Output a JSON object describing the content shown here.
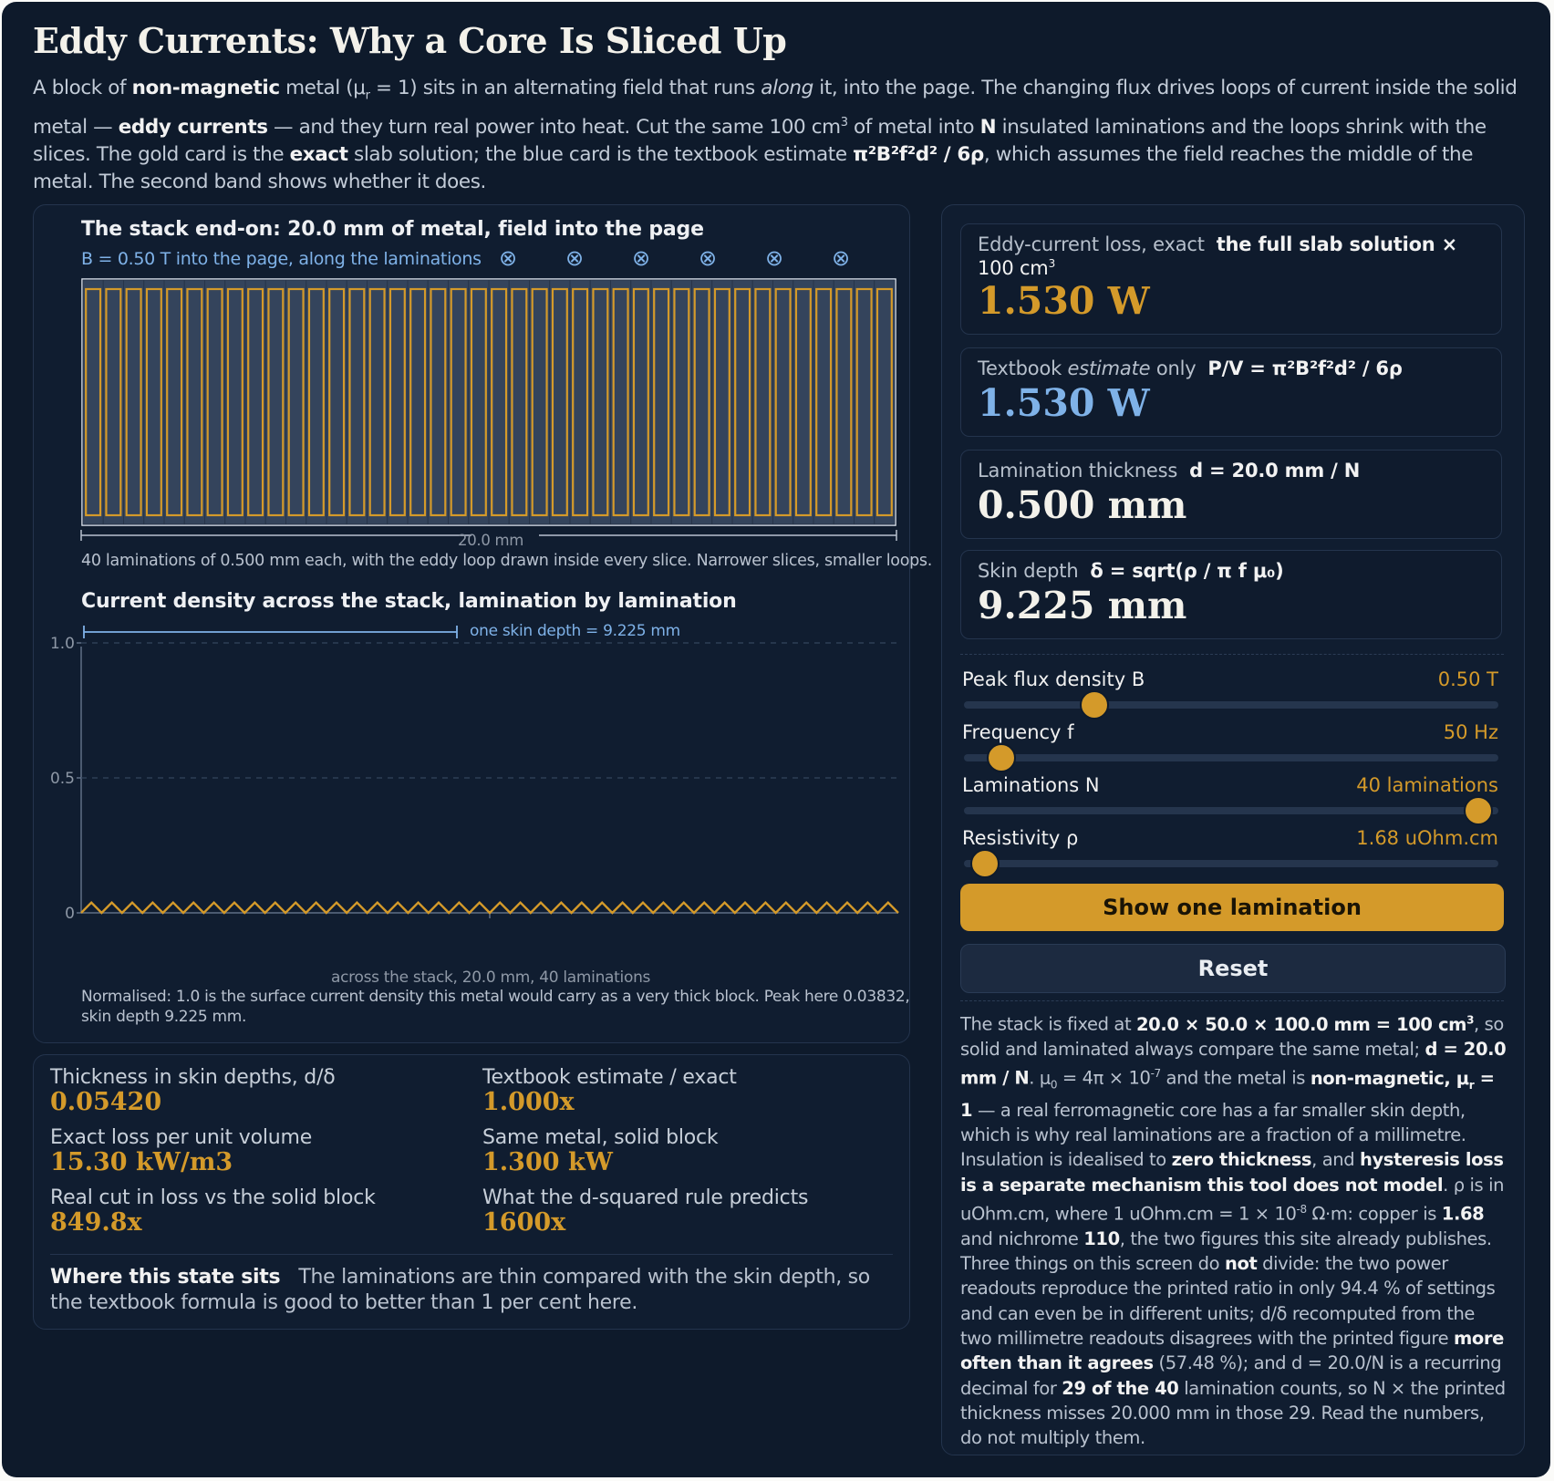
{
  "title": "Eddy Currents: Why a Core Is Sliced Up",
  "intro": {
    "t1": "A block of ",
    "b1": "non-magnetic",
    "t2": " metal (μ",
    "sub1": "r",
    "t3": " = 1) sits in an alternating field that runs ",
    "i1": "along",
    "t4": " it, into the page. The changing flux drives loops of current inside the solid metal — ",
    "b2": "eddy currents",
    "t5": " — and they turn real power into heat. Cut the same 100 cm",
    "sup1": "3",
    "t6": " of metal into ",
    "b3": "N",
    "t7": " insulated laminations and the loops shrink with the slices. The gold card is the ",
    "b4": "exact",
    "t8": " slab solution; the blue card is the textbook estimate ",
    "b5": "π²B²f²d² / 6ρ",
    "t9": ", which assumes the field reaches the middle of the metal. The second band shows whether it does."
  },
  "stack": {
    "heading": "The stack end-on: 20.0 mm of metal, field into the page",
    "field_label": "B = 0.50 T into the page, along the laminations",
    "field_symbol": "⊗",
    "field_symbol_count": 6,
    "lamination_count": 40,
    "dimension_label": "20.0 mm",
    "caption": "40 laminations of 0.500 mm each, with the eddy loop drawn inside every slice. Narrower slices, smaller loops."
  },
  "density": {
    "heading": "Current density across the stack, lamination by lamination",
    "skin_label": "one skin depth = 9.225 mm",
    "xlabel": "across the stack, 20.0 mm, 40 laminations",
    "caption_line1": "Normalised: 1.0 is the surface current density this metal would carry as a very thick block. Peak here 0.03832,",
    "caption_line2": "skin depth 9.225 mm."
  },
  "chart_data": {
    "type": "line",
    "title": "Current density across the stack, lamination by lamination",
    "xlabel": "across the stack, 20.0 mm, 40 laminations",
    "ylabel": "",
    "yticks": [
      "1.0",
      "0.5",
      "0"
    ],
    "ylim": [
      0,
      1.1
    ],
    "xlim": [
      0,
      20.0
    ],
    "grid": true,
    "skin_depth_mm": 9.225,
    "laminations": 40,
    "peak": 0.03832,
    "series": [
      {
        "profile": "zigzag",
        "values_per_lamination": [
          0,
          0.03832,
          0
        ]
      }
    ],
    "color": "#d49a2a"
  },
  "cards": {
    "exact": {
      "label": "Eddy-current loss, exact",
      "label_bold": "the full slab solution ×",
      "label_line2": "100 cm",
      "label_sup": "3",
      "value": "1.530 W",
      "color": "#d49a2a"
    },
    "estimate": {
      "label_a": "Textbook ",
      "label_i": "estimate",
      "label_b": " only",
      "formula": "P/V = π²B²f²d² / 6ρ",
      "value": "1.530 W",
      "color": "#7fb2e8"
    },
    "thickness": {
      "label": "Lamination thickness",
      "formula": "d = 20.0 mm / N",
      "value": "0.500 mm",
      "color": "#f3f1ea"
    },
    "skin": {
      "label": "Skin depth",
      "formula": "δ = sqrt(ρ / π f μ₀)",
      "value": "9.225 mm",
      "color": "#f3f1ea"
    }
  },
  "sliders": [
    {
      "name": "Peak flux density B",
      "value": "0.50 T",
      "fraction": 0.245
    },
    {
      "name": "Frequency f",
      "value": "50 Hz",
      "fraction": 0.07
    },
    {
      "name": "Laminations N",
      "value": "40 laminations",
      "fraction": 0.965
    },
    {
      "name": "Resistivity ρ",
      "value": "1.68 uOhm.cm",
      "fraction": 0.04
    }
  ],
  "buttons": {
    "show": "Show one lamination",
    "reset": "Reset"
  },
  "stats": [
    {
      "label": "Thickness in skin depths, d/δ",
      "value": "0.05420"
    },
    {
      "label": "Textbook estimate / exact",
      "value": "1.000x"
    },
    {
      "label": "Exact loss per unit volume",
      "value": "15.30 kW/m3"
    },
    {
      "label": "Same metal, solid block",
      "value": "1.300 kW"
    },
    {
      "label": "Real cut in loss vs the solid block",
      "value": "849.8x"
    },
    {
      "label": "What the d-squared rule predicts",
      "value": "1600x"
    }
  ],
  "state": {
    "label": "Where this state sits",
    "text": "The laminations are thin compared with the skin depth, so the textbook formula is good to better than 1 per cent here."
  },
  "note": {
    "a": "The stack is fixed at ",
    "b": "20.0 × 50.0 × 100.0 mm = 100 cm",
    "b_sup": "3",
    "c": ", so solid and laminated always compare the same metal; ",
    "d": "d = 20.0 mm / N",
    "e": ". μ",
    "e_sub": "0",
    "f": " = 4π × 10",
    "f_sup": "-7",
    "g": " and the metal is ",
    "h": "non-magnetic, μ",
    "h_sub": "r",
    "h2": " = 1",
    "i": " — a real ferromagnetic core has a far smaller skin depth, which is why real laminations are a fraction of a millimetre. Insulation is idealised to ",
    "j": "zero thickness",
    "k": ", and ",
    "l": "hysteresis loss is a separate mechanism this tool does not model",
    "m": ". ρ is in uOhm.cm, where 1 uOhm.cm = 1 × 10",
    "m_sup": "-8",
    "n": " Ω·m: copper is ",
    "o": "1.68",
    "p": " and nichrome ",
    "q": "110",
    "r": ", the two figures this site already publishes. Three things on this screen do ",
    "s": "not",
    "t": " divide: the two power readouts reproduce the printed ratio in only 94.4 % of settings and can even be in different units; d/δ recomputed from the two millimetre readouts disagrees with the printed figure ",
    "u": "more often than it agrees",
    "v": " (57.48 %); and d = 20.0/N is a recurring decimal for ",
    "w": "29 of the 40",
    "x": " lamination counts, so N × the printed thickness misses 20.000 mm in those 29. Read the numbers, do not multiply them."
  }
}
